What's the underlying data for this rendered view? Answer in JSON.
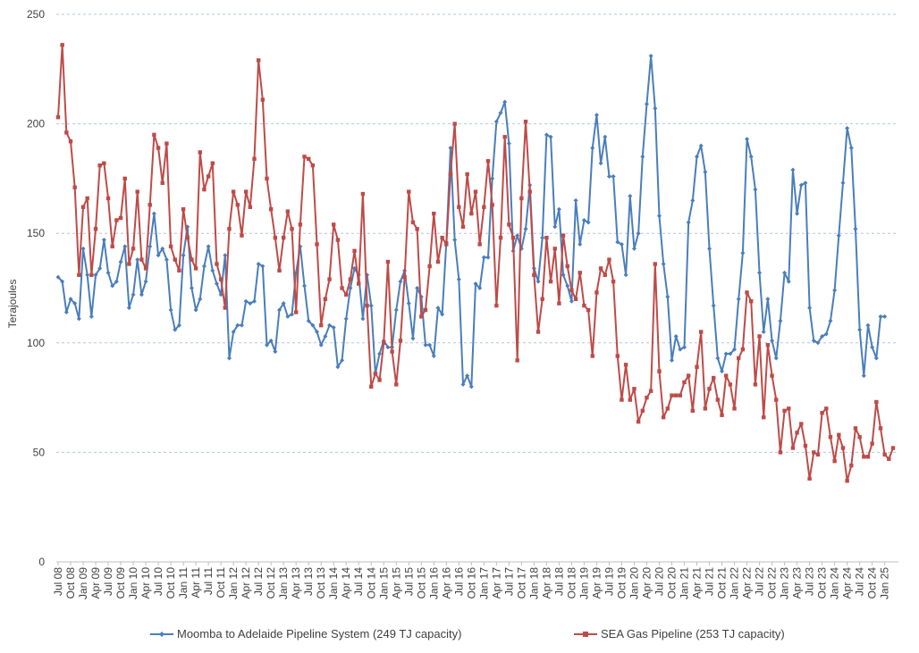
{
  "chart_data": {
    "type": "line",
    "title": "",
    "xlabel": "",
    "ylabel": "Terajoules",
    "ylim": [
      0,
      250
    ],
    "yticks": [
      0,
      50,
      100,
      150,
      200,
      250
    ],
    "grid": "horizontal dashed",
    "legend_position": "bottom",
    "start_month": "Jul 08",
    "x_tick_labels": [
      "Jul 08",
      "Oct 08",
      "Jan 09",
      "Apr 09",
      "Jul 09",
      "Oct 09",
      "Jan 10",
      "Apr 10",
      "Jul 10",
      "Oct 10",
      "Jan 11",
      "Apr 11",
      "Jul 11",
      "Oct 11",
      "Jan 12",
      "Apr 12",
      "Jul 12",
      "Oct 12",
      "Jan 13",
      "Apr 13",
      "Jul 13",
      "Oct 13",
      "Jan 14",
      "Apr 14",
      "Jul 14",
      "Oct 14",
      "Jan 15",
      "Apr 15",
      "Jul 15",
      "Oct 15",
      "Jan 16",
      "Apr 16",
      "Jul 16",
      "Oct 16",
      "Jan 17",
      "Apr 17",
      "Jul 17",
      "Oct 17",
      "Jan 18",
      "Apr 18",
      "Jul 18",
      "Oct 18",
      "Jan 19",
      "Apr 19",
      "Jul 19",
      "Oct 19",
      "Jan 20",
      "Apr 20",
      "Jul 20",
      "Oct 20",
      "Jan 21",
      "Apr 21",
      "Jul 21",
      "Oct 21",
      "Jan 22",
      "Apr 22",
      "Jul 22",
      "Oct 22",
      "Jan 23",
      "Apr 23",
      "Jul 23",
      "Oct 23",
      "Jan 24",
      "Apr 24",
      "Jul 24",
      "Oct 24",
      "Jan 25"
    ],
    "series": [
      {
        "name": "Moomba to Adelaide Pipeline System (249 TJ capacity)",
        "color": "#4a7ebb",
        "marker": "diamond",
        "values": [
          130,
          128,
          114,
          120,
          118,
          111,
          143,
          131,
          112,
          131,
          134,
          147,
          132,
          126,
          128,
          137,
          144,
          116,
          122,
          138,
          122,
          128,
          144,
          159,
          140,
          143,
          138,
          115,
          106,
          108,
          140,
          153,
          125,
          115,
          120,
          135,
          144,
          133,
          127,
          122,
          140,
          93,
          105,
          108,
          108,
          119,
          118,
          119,
          136,
          135,
          99,
          101,
          96,
          115,
          118,
          112,
          113,
          132,
          144,
          126,
          110,
          108,
          105,
          99,
          103,
          108,
          107,
          89,
          92,
          111,
          125,
          134,
          131,
          111,
          131,
          117,
          86,
          95,
          101,
          98,
          98,
          115,
          128,
          133,
          118,
          102,
          125,
          121,
          99,
          99,
          94,
          116,
          113,
          146,
          189,
          147,
          129,
          81,
          85,
          80,
          127,
          125,
          139,
          139,
          175,
          201,
          205,
          210,
          191,
          142,
          149,
          143,
          152,
          172,
          134,
          128,
          148,
          195,
          194,
          153,
          161,
          131,
          126,
          119,
          165,
          145,
          156,
          155,
          189,
          204,
          182,
          194,
          176,
          176,
          146,
          145,
          131,
          167,
          143,
          150,
          185,
          209,
          231,
          207,
          158,
          136,
          121,
          92,
          103,
          97,
          98,
          155,
          165,
          185,
          190,
          178,
          143,
          117,
          93,
          87,
          95,
          95,
          97,
          120,
          141,
          193,
          185,
          170,
          132,
          105,
          120,
          101,
          93,
          110,
          132,
          128,
          179,
          159,
          172,
          173,
          116,
          101,
          100,
          103,
          104,
          110,
          124,
          149,
          173,
          198,
          189,
          152,
          106,
          85,
          108,
          98,
          93,
          112,
          112
        ]
      },
      {
        "name": "SEA Gas Pipeline (253 TJ capacity)",
        "color": "#be4b48",
        "marker": "square",
        "values": [
          203,
          236,
          196,
          192,
          171,
          131,
          162,
          166,
          131,
          152,
          181,
          182,
          166,
          144,
          156,
          157,
          175,
          136,
          143,
          169,
          138,
          134,
          163,
          195,
          189,
          173,
          191,
          144,
          138,
          133,
          161,
          148,
          138,
          134,
          187,
          170,
          176,
          182,
          136,
          129,
          116,
          152,
          169,
          163,
          149,
          169,
          162,
          184,
          229,
          211,
          175,
          161,
          148,
          133,
          148,
          160,
          152,
          114,
          154,
          185,
          184,
          181,
          145,
          108,
          120,
          129,
          154,
          147,
          125,
          122,
          129,
          142,
          127,
          168,
          117,
          80,
          86,
          83,
          100,
          137,
          96,
          81,
          101,
          130,
          169,
          155,
          152,
          112,
          115,
          135,
          159,
          137,
          148,
          145,
          177,
          200,
          162,
          153,
          177,
          159,
          169,
          145,
          162,
          183,
          163,
          117,
          148,
          194,
          154,
          148,
          92,
          166,
          201,
          169,
          131,
          105,
          120,
          148,
          128,
          143,
          118,
          149,
          135,
          124,
          120,
          132,
          117,
          115,
          94,
          123,
          134,
          131,
          138,
          128,
          94,
          74,
          90,
          74,
          79,
          64,
          69,
          75,
          78,
          136,
          87,
          66,
          70,
          76,
          76,
          76,
          82,
          85,
          69,
          89,
          105,
          70,
          79,
          84,
          74,
          67,
          85,
          81,
          70,
          93,
          97,
          123,
          119,
          81,
          103,
          66,
          99,
          85,
          74,
          50,
          69,
          70,
          52,
          59,
          63,
          53,
          38,
          50,
          49,
          68,
          70,
          57,
          46,
          58,
          52,
          37,
          44,
          61,
          57,
          48,
          48,
          54,
          73,
          61,
          49,
          47,
          52
        ]
      }
    ]
  }
}
